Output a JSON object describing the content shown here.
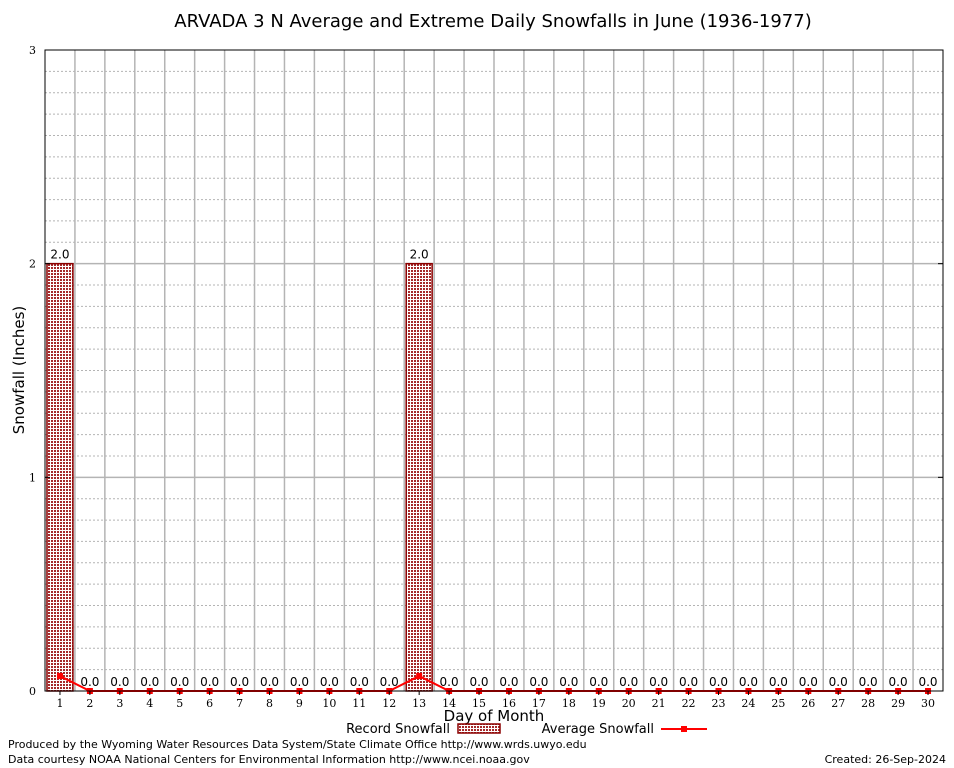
{
  "chart_data": {
    "type": "bar",
    "title": "ARVADA 3 N Average and Extreme Daily Snowfalls in June (1936-1977)",
    "xlabel": "Day of Month",
    "ylabel": "Snowfall (Inches)",
    "ylim": [
      0,
      3
    ],
    "yticks": [
      "0",
      "1",
      "2",
      "3"
    ],
    "categories": [
      "1",
      "2",
      "3",
      "4",
      "5",
      "6",
      "7",
      "8",
      "9",
      "10",
      "11",
      "12",
      "13",
      "14",
      "15",
      "16",
      "17",
      "18",
      "19",
      "20",
      "21",
      "22",
      "23",
      "24",
      "25",
      "26",
      "27",
      "28",
      "29",
      "30"
    ],
    "series": [
      {
        "name": "Record Snowfall",
        "type": "bar",
        "values": [
          2.0,
          0.0,
          0.0,
          0.0,
          0.0,
          0.0,
          0.0,
          0.0,
          0.0,
          0.0,
          0.0,
          0.0,
          2.0,
          0.0,
          0.0,
          0.0,
          0.0,
          0.0,
          0.0,
          0.0,
          0.0,
          0.0,
          0.0,
          0.0,
          0.0,
          0.0,
          0.0,
          0.0,
          0.0,
          0.0
        ],
        "labels": [
          "2.0",
          "0.0",
          "0.0",
          "0.0",
          "0.0",
          "0.0",
          "0.0",
          "0.0",
          "0.0",
          "0.0",
          "0.0",
          "0.0",
          "2.0",
          "0.0",
          "0.0",
          "0.0",
          "0.0",
          "0.0",
          "0.0",
          "0.0",
          "0.0",
          "0.0",
          "0.0",
          "0.0",
          "0.0",
          "0.0",
          "0.0",
          "0.0",
          "0.0",
          "0.0"
        ]
      },
      {
        "name": "Average Snowfall",
        "type": "line",
        "values": [
          0.07,
          0,
          0,
          0,
          0,
          0,
          0,
          0,
          0,
          0,
          0,
          0,
          0.07,
          0,
          0,
          0,
          0,
          0,
          0,
          0,
          0,
          0,
          0,
          0,
          0,
          0,
          0,
          0,
          0,
          0
        ]
      }
    ],
    "grid": true,
    "legend": "bottom-center",
    "colors": {
      "bar_fill": "#a52a2a",
      "bar_edge": "#8b0000",
      "line": "#ff0000",
      "grid": "#b4b4b4"
    }
  },
  "footer": {
    "credit1": "Produced by the Wyoming Water Resources Data System/State Climate Office http://www.wrds.uwyo.edu",
    "credit2": "Data courtesy NOAA National Centers for Environmental Information http://www.ncei.noaa.gov",
    "created": "Created:  26-Sep-2024"
  }
}
